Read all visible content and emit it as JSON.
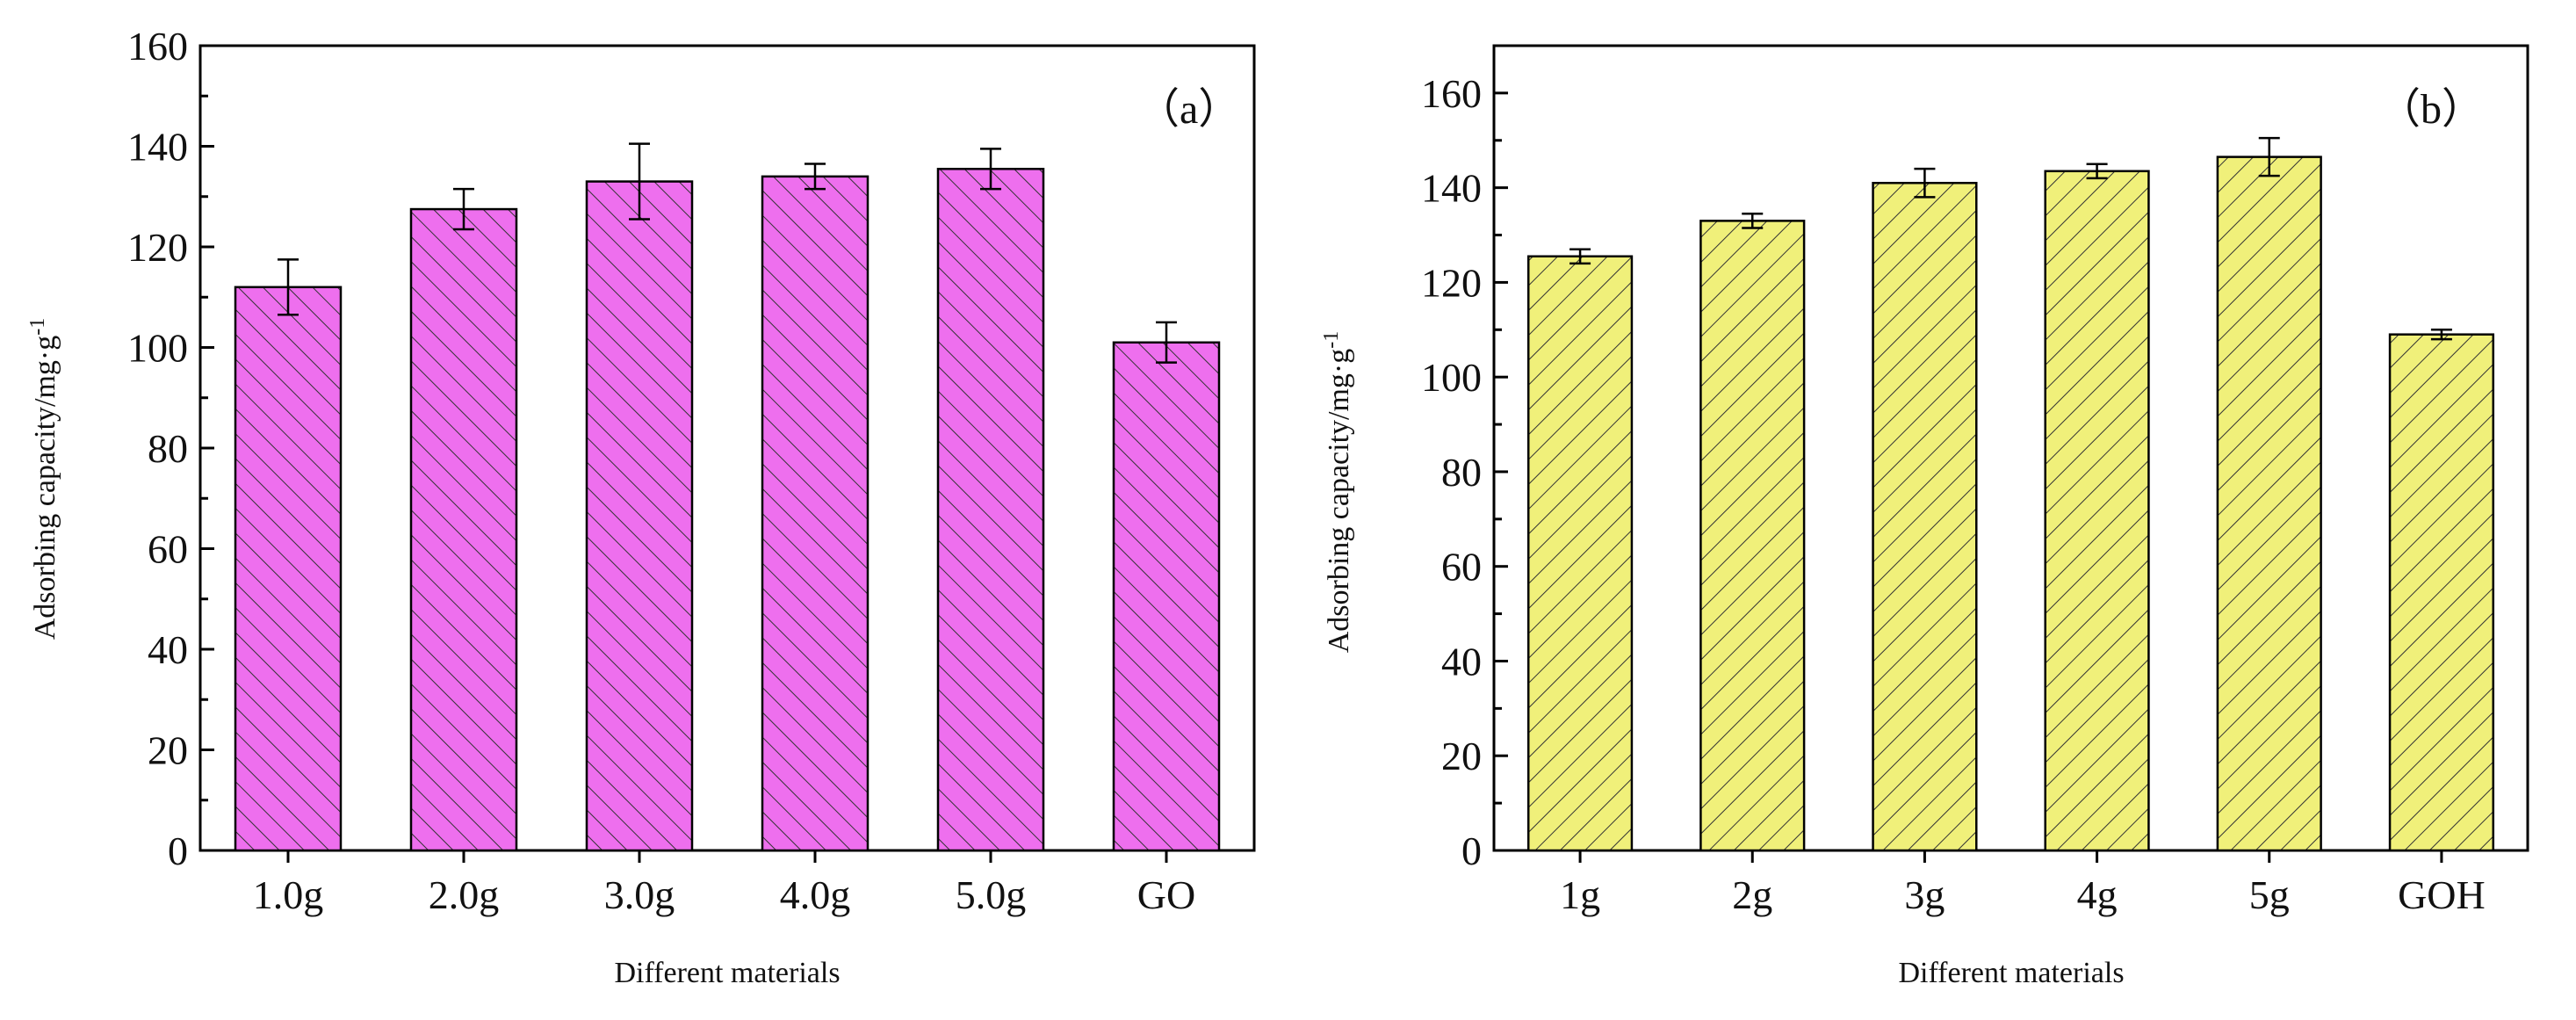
{
  "chart_data": [
    {
      "type": "bar",
      "panel_label": "（a）",
      "categories": [
        "1.0g",
        "2.0g",
        "3.0g",
        "4.0g",
        "5.0g",
        "GO"
      ],
      "values": [
        112,
        127.5,
        133,
        134,
        135.5,
        101
      ],
      "errors": [
        5.5,
        4,
        7.5,
        2.5,
        4,
        4
      ],
      "xlabel": "Different materials",
      "ylabel": "Adsorbing capacity/mg·g-1",
      "ylabel_main": "Adsorbing capacity/mg·g",
      "ylabel_sup": "-1",
      "ylim": [
        0,
        160
      ],
      "yticks": [
        "0",
        "20",
        "40",
        "60",
        "80",
        "100",
        "120",
        "140",
        "160"
      ],
      "bar_color": "#ee6fee",
      "hatch": "backslash",
      "grid": false
    },
    {
      "type": "bar",
      "panel_label": "（b）",
      "categories": [
        "1g",
        "2g",
        "3g",
        "4g",
        "5g",
        "GOH"
      ],
      "values": [
        125.5,
        133,
        141,
        143.5,
        146.5,
        109
      ],
      "errors": [
        1.5,
        1.5,
        3,
        1.5,
        4,
        1
      ],
      "xlabel": "Different materials",
      "ylabel": "Adsorbing capacity/mg·g-1",
      "ylabel_main": "Adsorbing capacity/mg·g",
      "ylabel_sup": "-1",
      "ylim": [
        0,
        170
      ],
      "yticks": [
        "0",
        "20",
        "40",
        "60",
        "80",
        "100",
        "120",
        "140",
        "160"
      ],
      "bar_color": "#f0f07a",
      "hatch": "slash",
      "grid": false
    }
  ]
}
